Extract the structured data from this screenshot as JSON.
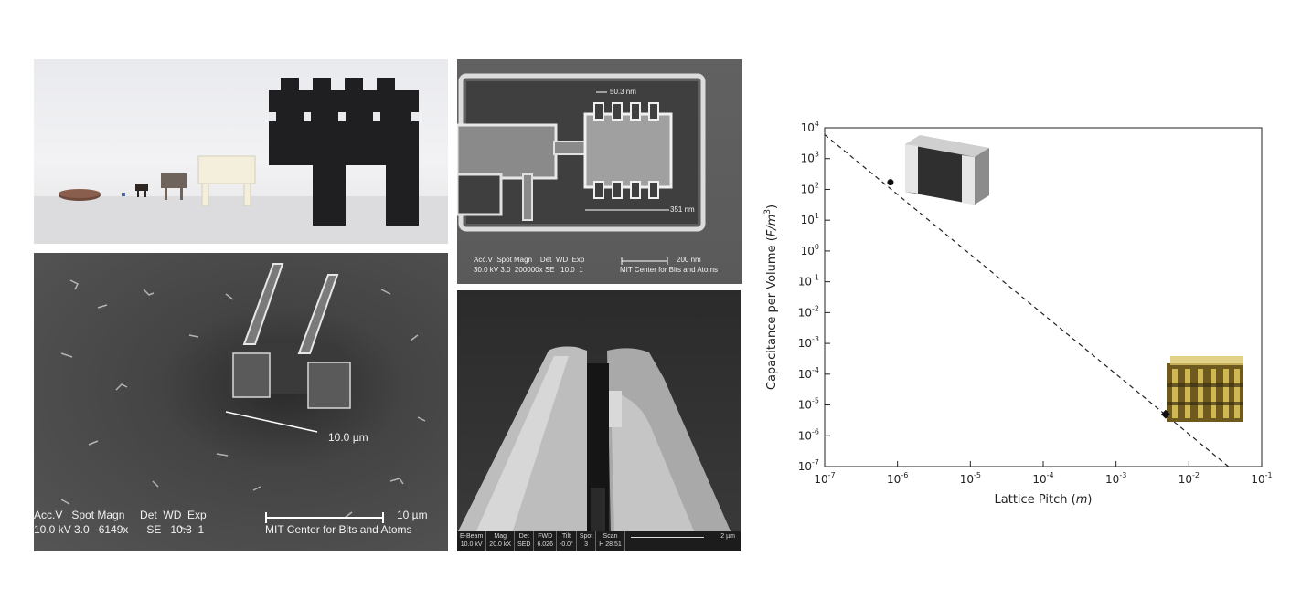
{
  "top_right_sem": {
    "label_top": "50.3 nm",
    "label_bottom": "351 nm",
    "scale_label": "200 nm",
    "info_line1": "Acc.V  Spot Magn    Det  WD  Exp",
    "info_line2": "30.0 kV 3.0  200000x SE   10.0  1",
    "credit": "MIT Center for Bits and Atoms"
  },
  "left_sem": {
    "measurement": "10.0 µm",
    "scale_label": "10 µm",
    "info_line1": "Acc.V   Spot Magn     Det  WD  Exp",
    "info_line2": "10.0 kV 3.0   6149x      SE   10.3  1",
    "credit": "MIT Center for Bits and Atoms"
  },
  "bottom_right_sem": {
    "headers": [
      "E-Beam",
      "Mag",
      "Det",
      "FWD",
      "Tilt",
      "Spot",
      "Scan"
    ],
    "values": [
      "10.0 kV",
      "20.0 kX",
      "SED",
      "6.026",
      "-0.0°",
      "3",
      "H 28.51"
    ],
    "scale_label": "2 µm"
  },
  "chart_data": {
    "type": "scatter",
    "xlabel_text": "Lattice Pitch",
    "xlabel_unit": "m",
    "ylabel_text": "Capacitance per Volume",
    "ylabel_unit": "F/m",
    "ylabel_exp": "3",
    "x_scale": "log",
    "y_scale": "log",
    "xlim": [
      1e-07,
      0.1
    ],
    "ylim": [
      1e-07,
      10000
    ],
    "x_ticks": [
      {
        "base": "10",
        "exp": "-7"
      },
      {
        "base": "10",
        "exp": "-6"
      },
      {
        "base": "10",
        "exp": "-5"
      },
      {
        "base": "10",
        "exp": "-4"
      },
      {
        "base": "10",
        "exp": "-3"
      },
      {
        "base": "10",
        "exp": "-2"
      },
      {
        "base": "10",
        "exp": "-1"
      }
    ],
    "y_ticks": [
      {
        "base": "10",
        "exp": "4"
      },
      {
        "base": "10",
        "exp": "3"
      },
      {
        "base": "10",
        "exp": "2"
      },
      {
        "base": "10",
        "exp": "1"
      },
      {
        "base": "10",
        "exp": "0"
      },
      {
        "base": "10",
        "exp": "-1"
      },
      {
        "base": "10",
        "exp": "-2"
      },
      {
        "base": "10",
        "exp": "-3"
      },
      {
        "base": "10",
        "exp": "-4"
      },
      {
        "base": "10",
        "exp": "-5"
      },
      {
        "base": "10",
        "exp": "-6"
      },
      {
        "base": "10",
        "exp": "-7"
      }
    ],
    "trend_line": {
      "x": [
        1e-07,
        0.035
      ],
      "y": [
        6000,
        1e-07
      ],
      "style": "dashed"
    },
    "points": [
      {
        "x": 8e-07,
        "y": 170
      },
      {
        "x": 0.0048,
        "y": 5e-06
      }
    ],
    "grid": false
  },
  "colors": {
    "plot_line": "#222222",
    "sem_text": "#f2f2f2"
  }
}
